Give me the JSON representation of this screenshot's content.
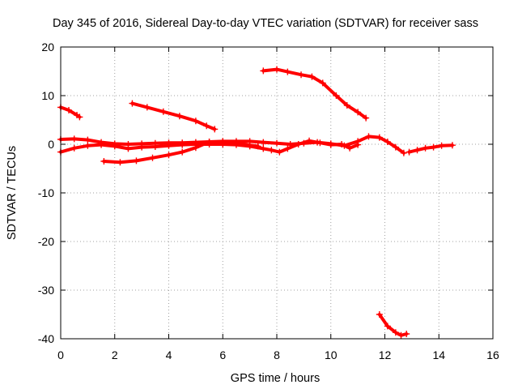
{
  "chart_data": {
    "type": "scatter",
    "title": "Day 345 of 2016, Sidereal Day-to-day VTEC variation (SDTVAR) for receiver sass",
    "xlabel": "GPS time / hours",
    "ylabel": "SDTVAR / TECUs",
    "xlim": [
      0,
      16
    ],
    "ylim": [
      -40,
      20
    ],
    "xticks": [
      0,
      2,
      4,
      6,
      8,
      10,
      12,
      14,
      16
    ],
    "yticks": [
      -40,
      -30,
      -20,
      -10,
      0,
      10,
      20
    ],
    "grid": true,
    "color": "#ff0000",
    "series": [
      {
        "name": "s1",
        "points": [
          [
            0.0,
            7.6
          ],
          [
            0.3,
            7.0
          ],
          [
            0.6,
            6.0
          ],
          [
            0.7,
            5.6
          ]
        ]
      },
      {
        "name": "s2",
        "points": [
          [
            2.65,
            8.4
          ],
          [
            3.2,
            7.6
          ],
          [
            3.8,
            6.7
          ],
          [
            4.4,
            5.8
          ],
          [
            5.0,
            4.8
          ],
          [
            5.4,
            3.8
          ],
          [
            5.7,
            3.1
          ]
        ]
      },
      {
        "name": "s3",
        "points": [
          [
            7.5,
            15.1
          ],
          [
            8.0,
            15.4
          ],
          [
            8.4,
            14.9
          ],
          [
            8.9,
            14.3
          ],
          [
            9.3,
            13.9
          ],
          [
            9.7,
            12.6
          ],
          [
            10.2,
            10.0
          ],
          [
            10.6,
            8.0
          ],
          [
            11.0,
            6.6
          ],
          [
            11.3,
            5.4
          ]
        ]
      },
      {
        "name": "s4",
        "points": [
          [
            0.0,
            1.0
          ],
          [
            0.5,
            1.1
          ],
          [
            1.0,
            0.9
          ],
          [
            1.5,
            0.4
          ],
          [
            2.0,
            0.1
          ],
          [
            2.5,
            0.0
          ],
          [
            3.0,
            0.1
          ],
          [
            3.5,
            0.2
          ],
          [
            4.0,
            0.3
          ],
          [
            4.5,
            0.3
          ],
          [
            5.0,
            0.4
          ],
          [
            5.5,
            0.5
          ],
          [
            6.0,
            0.6
          ],
          [
            6.5,
            0.6
          ],
          [
            7.0,
            0.6
          ],
          [
            7.5,
            0.4
          ],
          [
            8.0,
            0.2
          ],
          [
            8.5,
            0.0
          ],
          [
            9.0,
            0.2
          ],
          [
            9.5,
            0.4
          ],
          [
            10.0,
            0.1
          ],
          [
            10.5,
            -0.3
          ],
          [
            11.0,
            0.6
          ],
          [
            11.4,
            1.6
          ],
          [
            11.8,
            1.4
          ],
          [
            12.1,
            0.5
          ],
          [
            12.4,
            -0.6
          ],
          [
            12.7,
            -1.8
          ]
        ]
      },
      {
        "name": "s5",
        "points": [
          [
            0.0,
            -1.6
          ],
          [
            0.5,
            -0.8
          ],
          [
            1.0,
            -0.3
          ],
          [
            1.5,
            -0.1
          ],
          [
            2.0,
            -0.4
          ],
          [
            2.5,
            -0.9
          ],
          [
            3.0,
            -0.6
          ],
          [
            3.5,
            -0.5
          ],
          [
            4.0,
            -0.3
          ],
          [
            4.5,
            -0.1
          ],
          [
            5.0,
            0.0
          ],
          [
            5.5,
            0.0
          ],
          [
            6.0,
            0.0
          ],
          [
            6.5,
            -0.1
          ],
          [
            7.0,
            -0.4
          ],
          [
            7.5,
            -0.9
          ],
          [
            7.8,
            -1.2
          ],
          [
            8.1,
            -1.6
          ],
          [
            8.4,
            -0.9
          ],
          [
            8.8,
            0.0
          ],
          [
            9.2,
            0.7
          ],
          [
            9.6,
            0.3
          ],
          [
            10.0,
            -0.1
          ],
          [
            10.4,
            0.0
          ],
          [
            10.7,
            -0.8
          ],
          [
            11.0,
            -0.1
          ]
        ]
      },
      {
        "name": "s6",
        "points": [
          [
            1.6,
            -3.5
          ],
          [
            2.2,
            -3.7
          ],
          [
            2.8,
            -3.4
          ],
          [
            3.4,
            -2.8
          ],
          [
            4.0,
            -2.2
          ],
          [
            4.5,
            -1.6
          ],
          [
            5.0,
            -0.7
          ],
          [
            5.5,
            0.5
          ],
          [
            6.0,
            0.5
          ],
          [
            6.5,
            0.3
          ],
          [
            7.0,
            -0.2
          ],
          [
            7.3,
            -0.4
          ]
        ]
      },
      {
        "name": "s7",
        "points": [
          [
            12.9,
            -1.6
          ],
          [
            13.2,
            -1.2
          ],
          [
            13.5,
            -0.8
          ],
          [
            13.8,
            -0.6
          ],
          [
            14.1,
            -0.3
          ],
          [
            14.5,
            -0.2
          ]
        ]
      },
      {
        "name": "s8",
        "points": [
          [
            11.8,
            -35.0
          ],
          [
            12.1,
            -37.4
          ],
          [
            12.4,
            -38.7
          ],
          [
            12.6,
            -39.3
          ],
          [
            12.8,
            -39.0
          ]
        ]
      }
    ]
  }
}
